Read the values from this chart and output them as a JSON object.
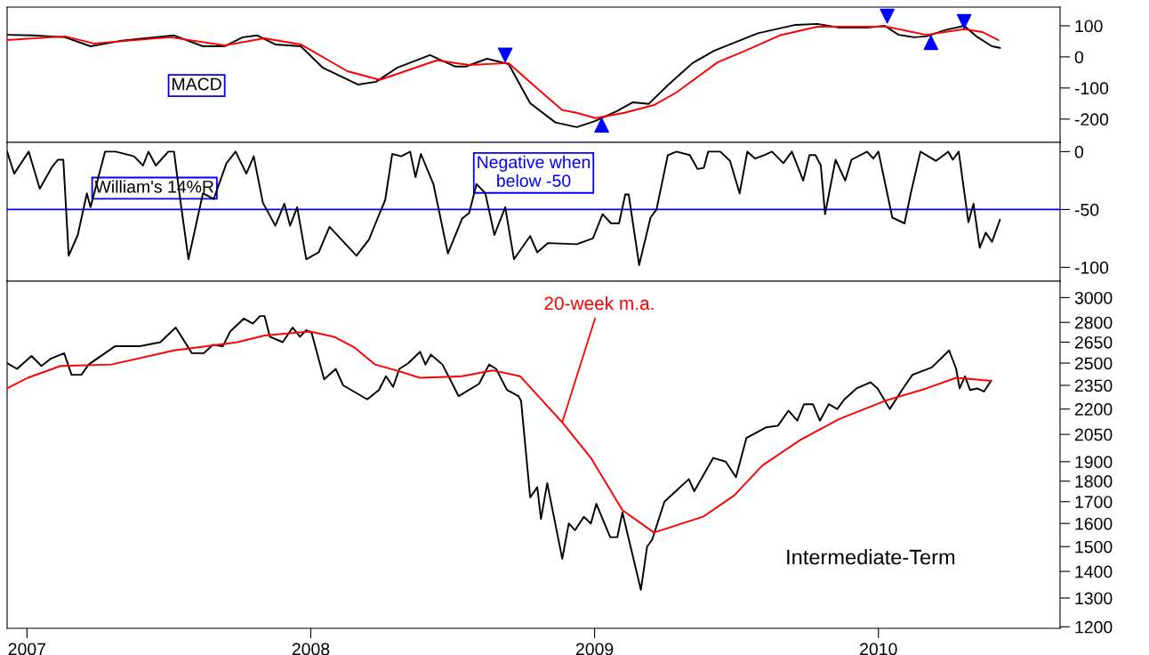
{
  "chart_data": [
    {
      "type": "line",
      "xlim": [
        2006.93,
        2010.64
      ],
      "ylim": [
        -275,
        160
      ],
      "yticks": [
        -200,
        -100,
        0,
        100
      ],
      "tick_labels": "y",
      "annotations": [
        "MACD"
      ],
      "series": [
        {
          "color": "#000000",
          "x": [
            2006.93,
            2007.019,
            2007.134,
            2007.224,
            2007.326,
            2007.518,
            2007.62,
            2007.696,
            2007.76,
            2007.812,
            2007.875,
            2007.965,
            2008.041,
            2008.167,
            2008.23,
            2008.306,
            2008.42,
            2008.508,
            2008.546,
            2008.621,
            2008.697,
            2008.773,
            2008.862,
            2008.937,
            2009.003,
            2009.08,
            2009.135,
            2009.191,
            2009.258,
            2009.345,
            2009.422,
            2009.477,
            2009.575,
            2009.708,
            2009.785,
            2009.862,
            2009.96,
            2010.022,
            2010.071,
            2010.126,
            2010.169,
            2010.234,
            2010.302,
            2010.345,
            2010.4,
            2010.428
          ],
          "values": [
            71,
            69,
            63,
            34,
            51,
            69,
            34,
            34,
            63,
            69,
            40,
            34,
            -34,
            -89,
            -80,
            -34,
            6,
            -31,
            -31,
            -6,
            -23,
            -149,
            -211,
            -226,
            -206,
            -174,
            -146,
            -151,
            -91,
            -20,
            20,
            40,
            76,
            103,
            106,
            94,
            94,
            100,
            71,
            63,
            66,
            86,
            100,
            66,
            34,
            29
          ]
        },
        {
          "color": "#ff0000",
          "x": [
            2006.93,
            2007.134,
            2007.236,
            2007.505,
            2007.696,
            2007.837,
            2007.965,
            2008.129,
            2008.243,
            2008.445,
            2008.558,
            2008.697,
            2008.785,
            2008.886,
            2008.937,
            2009.003,
            2009.105,
            2009.212,
            2009.289,
            2009.434,
            2009.532,
            2009.652,
            2009.785,
            2010.028,
            2010.169,
            2010.302,
            2010.366,
            2010.422
          ],
          "values": [
            54,
            66,
            43,
            63,
            37,
            60,
            40,
            -46,
            -74,
            -11,
            -26,
            -20,
            -91,
            -171,
            -180,
            -197,
            -180,
            -154,
            -114,
            -17,
            20,
            69,
            97,
            97,
            71,
            89,
            80,
            54
          ]
        },
        {
          "type": "scatter",
          "color": "#0000ff",
          "marker": "triangle_down",
          "x": [
            2008.685,
            2010.031,
            2010.302
          ],
          "values": [
            6,
            131,
            114
          ]
        },
        {
          "type": "scatter",
          "color": "#0000ff",
          "marker": "triangle",
          "x": [
            2009.025,
            2010.185
          ],
          "values": [
            -220,
            46
          ]
        }
      ]
    },
    {
      "type": "line",
      "xlim": [
        2006.93,
        2010.64
      ],
      "ylim": [
        -112,
        8
      ],
      "yticks": [
        -100,
        -50,
        0
      ],
      "tick_labels": "y",
      "annotations": [
        "William's 14%R",
        "Negative when\nbelow -50"
      ],
      "ref_lines": [
        {
          "axis": "y",
          "value": -50,
          "color": "#0000ff"
        }
      ],
      "series": [
        {
          "color": "#000000",
          "x": [
            2006.93,
            2006.955,
            2007.006,
            2007.045,
            2007.089,
            2007.109,
            2007.128,
            2007.147,
            2007.179,
            2007.211,
            2007.224,
            2007.275,
            2007.313,
            2007.377,
            2007.409,
            2007.428,
            2007.454,
            2007.498,
            2007.518,
            2007.543,
            2007.569,
            2007.62,
            2007.658,
            2007.703,
            2007.735,
            2007.773,
            2007.799,
            2007.831,
            2007.875,
            2007.907,
            2007.927,
            2007.952,
            2007.984,
            2008.028,
            2008.066,
            2008.104,
            2008.161,
            2008.205,
            2008.243,
            2008.262,
            2008.287,
            2008.319,
            2008.35,
            2008.369,
            2008.388,
            2008.432,
            2008.483,
            2008.533,
            2008.558,
            2008.584,
            2008.615,
            2008.647,
            2008.685,
            2008.716,
            2008.773,
            2008.798,
            2008.836,
            2008.937,
            2008.994,
            2009.028,
            2009.058,
            2009.086,
            2009.108,
            2009.12,
            2009.157,
            2009.197,
            2009.218,
            2009.258,
            2009.289,
            2009.335,
            2009.363,
            2009.385,
            2009.4,
            2009.443,
            2009.477,
            2009.511,
            2009.538,
            2009.566,
            2009.597,
            2009.625,
            2009.665,
            2009.695,
            2009.735,
            2009.757,
            2009.778,
            2009.797,
            2009.812,
            2009.849,
            2009.883,
            2009.905,
            2009.96,
            2009.982,
            2010.0,
            2010.049,
            2010.092,
            2010.114,
            2010.148,
            2010.203,
            2010.246,
            2010.262,
            2010.283,
            2010.317,
            2010.335,
            2010.357,
            2010.378,
            2010.4,
            2010.428
          ],
          "values": [
            0,
            -19,
            0,
            -32,
            -13,
            -7,
            -7,
            -90,
            -72,
            -36,
            -48,
            0,
            0,
            -4,
            -12,
            0,
            -12,
            0,
            0,
            -47,
            -93,
            -36,
            -41,
            -10,
            0,
            -19,
            -4,
            -44,
            -64,
            -45,
            -64,
            -48,
            -93,
            -87,
            -65,
            -75,
            -90,
            -76,
            -53,
            -42,
            -2,
            -4,
            0,
            -22,
            -2,
            -28,
            -88,
            -58,
            -53,
            -28,
            -36,
            -72,
            -48,
            -93,
            -73,
            -87,
            -79,
            -80,
            -75,
            -54,
            -62,
            -62,
            -37,
            -37,
            -98,
            -57,
            -50,
            -3,
            0,
            -3,
            -15,
            -14,
            0,
            0,
            -8,
            -36,
            0,
            -6,
            -3,
            0,
            -10,
            0,
            -25,
            -3,
            -3,
            -12,
            -54,
            -7,
            -25,
            -7,
            0,
            -6,
            0,
            -57,
            -62,
            -36,
            0,
            -8,
            0,
            -7,
            0,
            -61,
            -45,
            -83,
            -70,
            -78,
            -59
          ]
        }
      ]
    },
    {
      "type": "line",
      "xlim": [
        2006.93,
        2010.64
      ],
      "ylim": [
        1195,
        3140
      ],
      "log": true,
      "xticks": [
        2007,
        2008,
        2009,
        2010
      ],
      "yticks": [
        1200,
        1300,
        1400,
        1500,
        1600,
        1700,
        1800,
        1900,
        2050,
        2200,
        2350,
        2500,
        2650,
        2800,
        3000
      ],
      "annotations": [
        {
          "text": "20-week m.a.",
          "x": 2008.886,
          "y": 2120
        },
        "Intermediate-Term"
      ],
      "series": [
        {
          "color": "#000000",
          "x": [
            2006.93,
            2006.965,
            2007.016,
            2007.051,
            2007.083,
            2007.131,
            2007.157,
            2007.192,
            2007.217,
            2007.31,
            2007.396,
            2007.422,
            2007.47,
            2007.524,
            2007.581,
            2007.623,
            2007.655,
            2007.69,
            2007.716,
            2007.764,
            2007.796,
            2007.821,
            2007.837,
            2007.856,
            2007.901,
            2007.936,
            2007.962,
            2007.984,
            2008.003,
            2008.047,
            2008.088,
            2008.114,
            2008.199,
            2008.24,
            2008.265,
            2008.29,
            2008.312,
            2008.344,
            2008.385,
            2008.404,
            2008.423,
            2008.464,
            2008.521,
            2008.593,
            2008.628,
            2008.653,
            2008.691,
            2008.732,
            2008.741,
            2008.773,
            2008.798,
            2008.811,
            2008.833,
            2008.886,
            2008.909,
            2008.931,
            2008.962,
            2008.987,
            2009.006,
            2009.055,
            2009.08,
            2009.098,
            2009.163,
            2009.185,
            2009.203,
            2009.246,
            2009.332,
            2009.351,
            2009.418,
            2009.462,
            2009.498,
            2009.535,
            2009.603,
            2009.646,
            2009.683,
            2009.714,
            2009.738,
            2009.769,
            2009.794,
            2009.825,
            2009.855,
            2009.88,
            2009.923,
            2009.972,
            2009.997,
            2010.04,
            2010.083,
            2010.12,
            2010.188,
            2010.249,
            2010.274,
            2010.286,
            2010.305,
            2010.323,
            2010.348,
            2010.372,
            2010.397
          ],
          "values": [
            2500,
            2460,
            2550,
            2480,
            2530,
            2570,
            2420,
            2420,
            2490,
            2620,
            2620,
            2630,
            2650,
            2760,
            2570,
            2570,
            2630,
            2620,
            2730,
            2830,
            2790,
            2850,
            2850,
            2690,
            2650,
            2760,
            2690,
            2740,
            2720,
            2390,
            2460,
            2350,
            2260,
            2320,
            2410,
            2340,
            2460,
            2500,
            2580,
            2490,
            2560,
            2490,
            2280,
            2360,
            2490,
            2460,
            2320,
            2280,
            2250,
            1720,
            1770,
            1620,
            1790,
            1450,
            1600,
            1570,
            1630,
            1600,
            1690,
            1540,
            1540,
            1650,
            1330,
            1500,
            1530,
            1700,
            1810,
            1750,
            1920,
            1900,
            1820,
            2030,
            2090,
            2100,
            2190,
            2130,
            2230,
            2230,
            2130,
            2230,
            2200,
            2260,
            2330,
            2370,
            2330,
            2200,
            2320,
            2420,
            2470,
            2590,
            2460,
            2330,
            2410,
            2320,
            2330,
            2310,
            2380
          ]
        },
        {
          "color": "#ff0000",
          "x": [
            2006.93,
            2007.003,
            2007.118,
            2007.297,
            2007.518,
            2007.741,
            2007.837,
            2007.997,
            2008.082,
            2008.155,
            2008.227,
            2008.3,
            2008.385,
            2008.533,
            2008.64,
            2008.738,
            2008.886,
            2008.987,
            2009.098,
            2009.209,
            2009.382,
            2009.492,
            2009.591,
            2009.726,
            2009.862,
            2010.022,
            2010.169,
            2010.274,
            2010.397
          ],
          "values": [
            2330,
            2400,
            2480,
            2490,
            2590,
            2650,
            2700,
            2730,
            2690,
            2610,
            2490,
            2450,
            2400,
            2410,
            2450,
            2410,
            2120,
            1920,
            1660,
            1560,
            1630,
            1730,
            1880,
            2020,
            2140,
            2250,
            2330,
            2400,
            2380
          ]
        }
      ]
    }
  ]
}
